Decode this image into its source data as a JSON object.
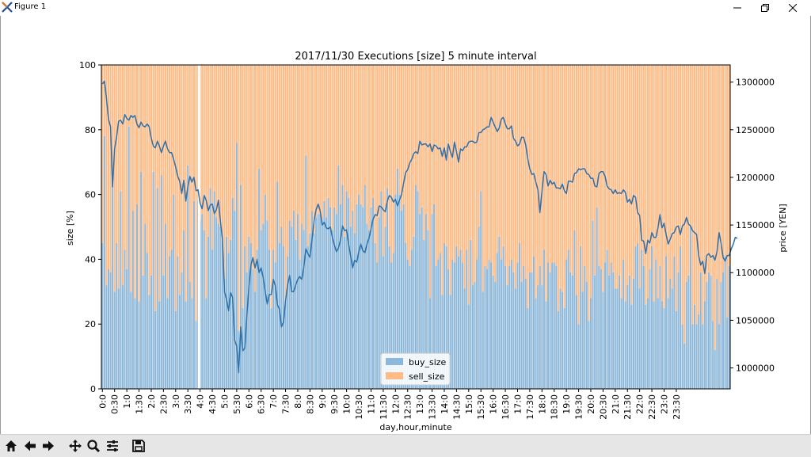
{
  "window": {
    "title": "Figure 1",
    "icon": "matplotlib-x-icon",
    "controls": [
      "minimize-icon",
      "restore-icon",
      "close-icon"
    ]
  },
  "toolbar": {
    "buttons": [
      "home-icon",
      "back-arrow-icon",
      "forward-arrow-icon",
      "pan-icon",
      "zoom-icon",
      "configure-subplots-icon",
      "save-icon"
    ]
  },
  "chart_data": {
    "type": "bar",
    "title": "2017/11/30 Executions [size] 5 minute interval",
    "xlabel": "day,hour,minute",
    "ylabel": "size [%]",
    "ylabel_right": "price [YEN]",
    "ylim": [
      0,
      100
    ],
    "yticks": [
      0,
      20,
      40,
      60,
      80,
      100
    ],
    "y2lim": [
      978000,
      1318000
    ],
    "y2ticks": [
      1000000,
      1050000,
      1100000,
      1150000,
      1200000,
      1250000,
      1300000
    ],
    "y2ticklabels": [
      "1000000",
      "1050000",
      "1100000",
      "1150000",
      "1200000",
      "1250000",
      "1300000"
    ],
    "xticklabels": [
      "0:0",
      "0:30",
      "1:0",
      "1:30",
      "2:0",
      "2:30",
      "3:0",
      "3:30",
      "4:0",
      "4:30",
      "5:0",
      "5:30",
      "6:0",
      "6:30",
      "7:0",
      "7:30",
      "8:0",
      "8:30",
      "9:0",
      "9:30",
      "10:0",
      "10:30",
      "11:0",
      "11:30",
      "12:0",
      "12:30",
      "13:0",
      "13:30",
      "14:0",
      "14:30",
      "15:0",
      "15:30",
      "16:0",
      "16:30",
      "17:0",
      "17:30",
      "18:0",
      "18:30",
      "19:0",
      "19:30",
      "20:0",
      "20:30",
      "21:0",
      "21:30",
      "22:0",
      "22:30",
      "23:0",
      "23:30"
    ],
    "legend": {
      "position": "lower-center",
      "entries": [
        {
          "label": "buy_size",
          "color": "#8eb8d9"
        },
        {
          "label": "sell_size",
          "color": "#ffbb86"
        }
      ]
    },
    "colors": {
      "buy": "#8eb8d9",
      "sell": "#ffbb86",
      "price_line": "#2a71ad",
      "marker": "#ffffff"
    },
    "marker_line_at_index": 48,
    "grid": false,
    "stacked_percent": true,
    "series": [
      {
        "name": "buy_size",
        "values": [
          45,
          78,
          32,
          37,
          36,
          63,
          30,
          45,
          31,
          61,
          32,
          43,
          37,
          81,
          30,
          55,
          28,
          57,
          27,
          67,
          35,
          51,
          42,
          29,
          35,
          67,
          24,
          62,
          27,
          66,
          35,
          51,
          28,
          41,
          43,
          60,
          24,
          41,
          29,
          36,
          49,
          27,
          69,
          33,
          28,
          58,
          21,
          58,
          52,
          54,
          49,
          28,
          47,
          62,
          43,
          61,
          53,
          51,
          50,
          45,
          34,
          47,
          42,
          46,
          59,
          55,
          76,
          18,
          63,
          25,
          44,
          36,
          47,
          45,
          37,
          30,
          43,
          68,
          49,
          51,
          60,
          52,
          43,
          25,
          43,
          39,
          64,
          45,
          50,
          44,
          27,
          41,
          52,
          50,
          55,
          46,
          54,
          40,
          51,
          49,
          72,
          44,
          48,
          55,
          48,
          53,
          54,
          54,
          52,
          58,
          53,
          59,
          56,
          49,
          56,
          54,
          69,
          57,
          63,
          47,
          61,
          59,
          50,
          55,
          48,
          57,
          60,
          57,
          56,
          63,
          51,
          49,
          56,
          59,
          45,
          39,
          53,
          61,
          41,
          50,
          62,
          44,
          39,
          42,
          60,
          68,
          60,
          55,
          57,
          45,
          40,
          38,
          43,
          47,
          63,
          61,
          54,
          56,
          46,
          54,
          49,
          28,
          54,
          57,
          38,
          40,
          42,
          29,
          45,
          44,
          37,
          29,
          40,
          39,
          44,
          41,
          43,
          39,
          31,
          43,
          26,
          46,
          32,
          33,
          40,
          50,
          61,
          30,
          38,
          37,
          40,
          39,
          35,
          33,
          42,
          47,
          40,
          44,
          38,
          32,
          38,
          40,
          36,
          31,
          39,
          45,
          33,
          38,
          34,
          25,
          36,
          36,
          41,
          28,
          32,
          38,
          32,
          43,
          27,
          39,
          36,
          39,
          39,
          38,
          24,
          31,
          30,
          25,
          40,
          43,
          36,
          35,
          49,
          29,
          20,
          44,
          30,
          38,
          33,
          21,
          28,
          52,
          35,
          56,
          38,
          37,
          30,
          39,
          43,
          35,
          39,
          36,
          31,
          31,
          35,
          28,
          40,
          27,
          32,
          35,
          26,
          34,
          44,
          45,
          31,
          43,
          38,
          26,
          28,
          37,
          44,
          27,
          40,
          28,
          38,
          27,
          25,
          41,
          28,
          34,
          31,
          41,
          24,
          36,
          44,
          20,
          14,
          33,
          35,
          50,
          20,
          26,
          20,
          23,
          36,
          20,
          27,
          33,
          36,
          35,
          21,
          12,
          34,
          20,
          33,
          36,
          41,
          22,
          38
        ]
      },
      {
        "name": "sell_size",
        "values": [
          55,
          22,
          68,
          63,
          64,
          37,
          70,
          55,
          69,
          39,
          68,
          57,
          63,
          19,
          70,
          45,
          72,
          43,
          73,
          33,
          65,
          49,
          58,
          71,
          65,
          33,
          76,
          38,
          73,
          34,
          65,
          49,
          72,
          59,
          57,
          40,
          76,
          59,
          71,
          64,
          51,
          73,
          31,
          67,
          72,
          42,
          79,
          42,
          48,
          46,
          51,
          72,
          53,
          38,
          57,
          39,
          47,
          49,
          50,
          55,
          66,
          53,
          58,
          54,
          41,
          45,
          24,
          82,
          37,
          75,
          56,
          64,
          53,
          55,
          63,
          70,
          57,
          32,
          51,
          49,
          40,
          48,
          57,
          75,
          57,
          61,
          36,
          55,
          50,
          56,
          73,
          59,
          48,
          50,
          45,
          54,
          46,
          60,
          49,
          51,
          28,
          56,
          52,
          45,
          52,
          47,
          46,
          46,
          48,
          42,
          47,
          41,
          44,
          51,
          44,
          46,
          31,
          43,
          37,
          53,
          39,
          41,
          50,
          45,
          52,
          43,
          40,
          43,
          44,
          37,
          49,
          51,
          44,
          41,
          55,
          61,
          47,
          39,
          59,
          50,
          38,
          56,
          61,
          58,
          40,
          32,
          40,
          45,
          43,
          55,
          60,
          62,
          57,
          53,
          37,
          39,
          46,
          44,
          54,
          46,
          51,
          72,
          46,
          43,
          62,
          60,
          58,
          71,
          55,
          56,
          63,
          71,
          60,
          61,
          56,
          59,
          57,
          61,
          69,
          57,
          74,
          54,
          68,
          67,
          60,
          50,
          39,
          70,
          62,
          63,
          60,
          61,
          65,
          67,
          58,
          53,
          60,
          56,
          62,
          68,
          62,
          60,
          64,
          69,
          61,
          55,
          67,
          62,
          66,
          75,
          64,
          64,
          59,
          72,
          68,
          62,
          68,
          57,
          73,
          61,
          64,
          61,
          61,
          62,
          76,
          69,
          70,
          75,
          60,
          57,
          64,
          65,
          51,
          71,
          80,
          56,
          70,
          62,
          67,
          79,
          72,
          48,
          65,
          44,
          62,
          63,
          70,
          61,
          57,
          65,
          61,
          64,
          69,
          69,
          65,
          72,
          60,
          73,
          68,
          65,
          74,
          66,
          56,
          55,
          69,
          57,
          62,
          74,
          72,
          63,
          56,
          73,
          60,
          72,
          62,
          73,
          75,
          59,
          72,
          66,
          69,
          59,
          76,
          64,
          56,
          80,
          86,
          67,
          65,
          50,
          80,
          74,
          80,
          77,
          64,
          80,
          73,
          67,
          64,
          65,
          79,
          88,
          66,
          80,
          67,
          64,
          59,
          78,
          62
        ]
      },
      {
        "name": "price",
        "values": [
          1298000,
          1301000,
          1283000,
          1261000,
          1253000,
          1190000,
          1230000,
          1243000,
          1259000,
          1260000,
          1256000,
          1266000,
          1262000,
          1260000,
          1265000,
          1263000,
          1265000,
          1256000,
          1252000,
          1258000,
          1254000,
          1253000,
          1256000,
          1253000,
          1241000,
          1233000,
          1231000,
          1238000,
          1233000,
          1226000,
          1233000,
          1238000,
          1230000,
          1226000,
          1226000,
          1219000,
          1211000,
          1201000,
          1196000,
          1183000,
          1197000,
          1175000,
          1190000,
          1201000,
          1195000,
          1200000,
          1186000,
          1187000,
          1173000,
          1167000,
          1181000,
          1176000,
          1165000,
          1171000,
          1172000,
          1162000,
          1166000,
          1176000,
          1154000,
          1135000,
          1080000,
          1072000,
          1060000,
          1079000,
          1074000,
          1029000,
          1023000,
          995000,
          1043000,
          1018000,
          1021000,
          1055000,
          1085000,
          1108000,
          1116000,
          1105000,
          1114000,
          1100000,
          1105000,
          1095000,
          1080000,
          1067000,
          1077000,
          1077000,
          1093000,
          1086000,
          1066000,
          1062000,
          1043000,
          1048000,
          1070000,
          1087000,
          1097000,
          1080000,
          1080000,
          1087000,
          1093000,
          1096000,
          1093000,
          1106000,
          1125000,
          1120000,
          1116000,
          1135000,
          1154000,
          1166000,
          1172000,
          1165000,
          1150000,
          1153000,
          1147000,
          1146000,
          1148000,
          1137000,
          1129000,
          1122000,
          1126000,
          1134000,
          1149000,
          1144000,
          1145000,
          1130000,
          1117000,
          1105000,
          1113000,
          1111000,
          1122000,
          1130000,
          1123000,
          1121000,
          1130000,
          1136000,
          1146000,
          1156000,
          1161000,
          1160000,
          1170000,
          1169000,
          1166000,
          1164000,
          1175000,
          1181000,
          1179000,
          1174000,
          1177000,
          1170000,
          1176000,
          1182000,
          1194000,
          1205000,
          1208000,
          1215000,
          1219000,
          1225000,
          1227000,
          1225000,
          1238000,
          1234000,
          1235000,
          1235000,
          1232000,
          1235000,
          1227000,
          1234000,
          1233000,
          1230000,
          1231000,
          1222000,
          1231000,
          1218000,
          1235000,
          1227000,
          1221000,
          1237000,
          1227000,
          1216000,
          1230000,
          1228000,
          1232000,
          1232000,
          1237000,
          1238000,
          1238000,
          1236000,
          1237000,
          1247000,
          1247000,
          1250000,
          1251000,
          1253000,
          1253000,
          1263000,
          1258000,
          1253000,
          1248000,
          1252000,
          1261000,
          1263000,
          1256000,
          1251000,
          1251000,
          1254000,
          1241000,
          1238000,
          1233000,
          1235000,
          1242000,
          1242000,
          1234000,
          1220000,
          1209000,
          1203000,
          1204000,
          1195000,
          1187000,
          1163000,
          1185000,
          1206000,
          1203000,
          1191000,
          1197000,
          1193000,
          1195000,
          1189000,
          1189000,
          1188000,
          1193000,
          1186000,
          1183000,
          1196000,
          1196000,
          1195000,
          1204000,
          1205000,
          1209000,
          1208000,
          1209000,
          1209000,
          1204000,
          1203000,
          1199000,
          1199000,
          1191000,
          1190000,
          1204000,
          1206000,
          1206000,
          1201000,
          1191000,
          1188000,
          1187000,
          1183000,
          1187000,
          1183000,
          1184000,
          1183000,
          1187000,
          1184000,
          1174000,
          1177000,
          1172000,
          1181000,
          1179000,
          1163000,
          1160000,
          1134000,
          1133000,
          1120000,
          1134000,
          1131000,
          1142000,
          1137000,
          1137000,
          1147000,
          1161000,
          1147000,
          1152000,
          1140000,
          1130000,
          1135000,
          1141000,
          1142000,
          1148000,
          1149000,
          1140000,
          1149000,
          1151000,
          1158000,
          1151000,
          1149000,
          1144000,
          1142000,
          1140000,
          1118000,
          1108000,
          1112000,
          1099000,
          1118000,
          1120000,
          1116000,
          1118000,
          1113000,
          1122000,
          1142000,
          1131000,
          1116000,
          1112000,
          1118000,
          1118000,
          1125000,
          1130000,
          1137000,
          1136000
        ]
      }
    ]
  }
}
